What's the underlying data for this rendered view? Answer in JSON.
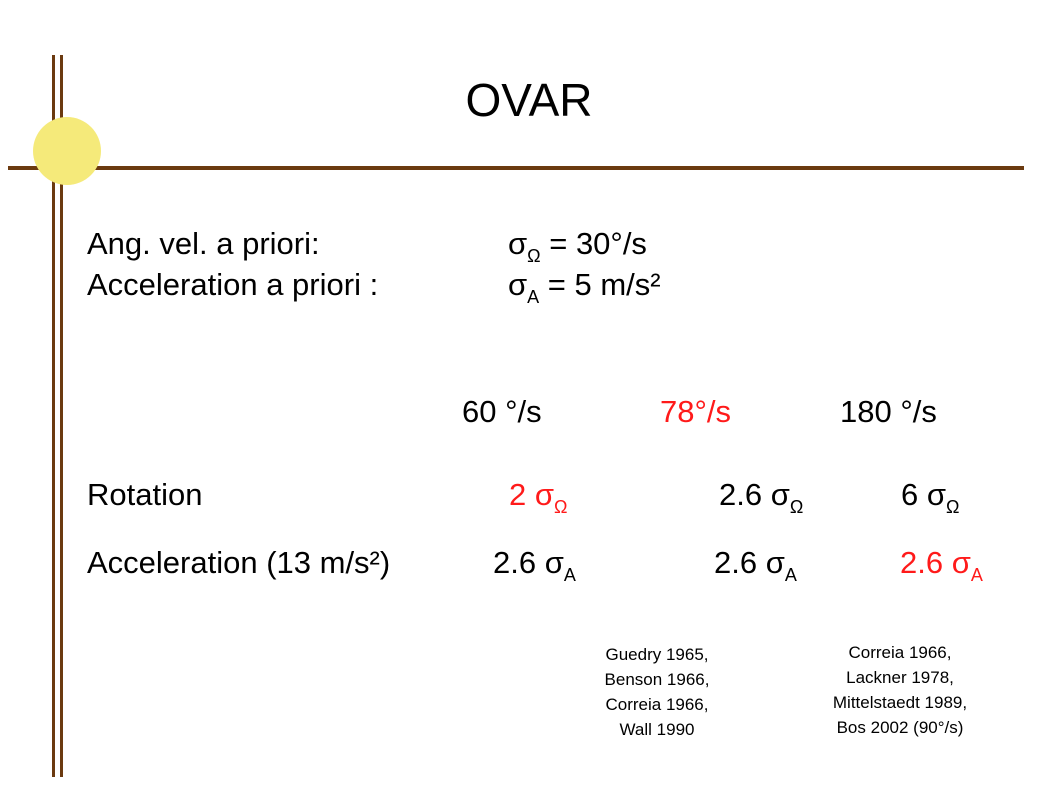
{
  "title": "OVAR",
  "priors": {
    "ang_label": "Ang. vel. a priori:",
    "ang_sigma": "σ",
    "ang_sub": "Ω",
    "ang_value": " = 30°/s",
    "acc_label": "Acceleration a priori :",
    "acc_sigma": "σ",
    "acc_sub": "A",
    "acc_value": " = 5 m/s²"
  },
  "speeds": [
    "60 °/s",
    "78°/s",
    "180 °/s"
  ],
  "rotation": {
    "label": "Rotation",
    "values": [
      {
        "num": "2 σ",
        "sub": "Ω"
      },
      {
        "num": "2.6 σ",
        "sub": "Ω"
      },
      {
        "num": "6 σ",
        "sub": "Ω"
      }
    ]
  },
  "acceleration": {
    "label": "Acceleration (13 m/s²)",
    "values": [
      {
        "num": "2.6 σ",
        "sub": "A"
      },
      {
        "num": "2.6 σ",
        "sub": "A"
      },
      {
        "num": "2.6 σ",
        "sub": "A"
      }
    ]
  },
  "refs": {
    "left": [
      "Guedry 1965,",
      "Benson 1966,",
      "Correia 1966,",
      "Wall 1990"
    ],
    "right": [
      "Correia 1966,",
      "Lackner 1978,",
      "Mittelstaedt 1989,",
      "Bos 2002 (90°/s)"
    ]
  },
  "colors": {
    "frame": "#6b3a10",
    "circle": "#f5ea7a",
    "highlight": "#ff1a1a"
  }
}
